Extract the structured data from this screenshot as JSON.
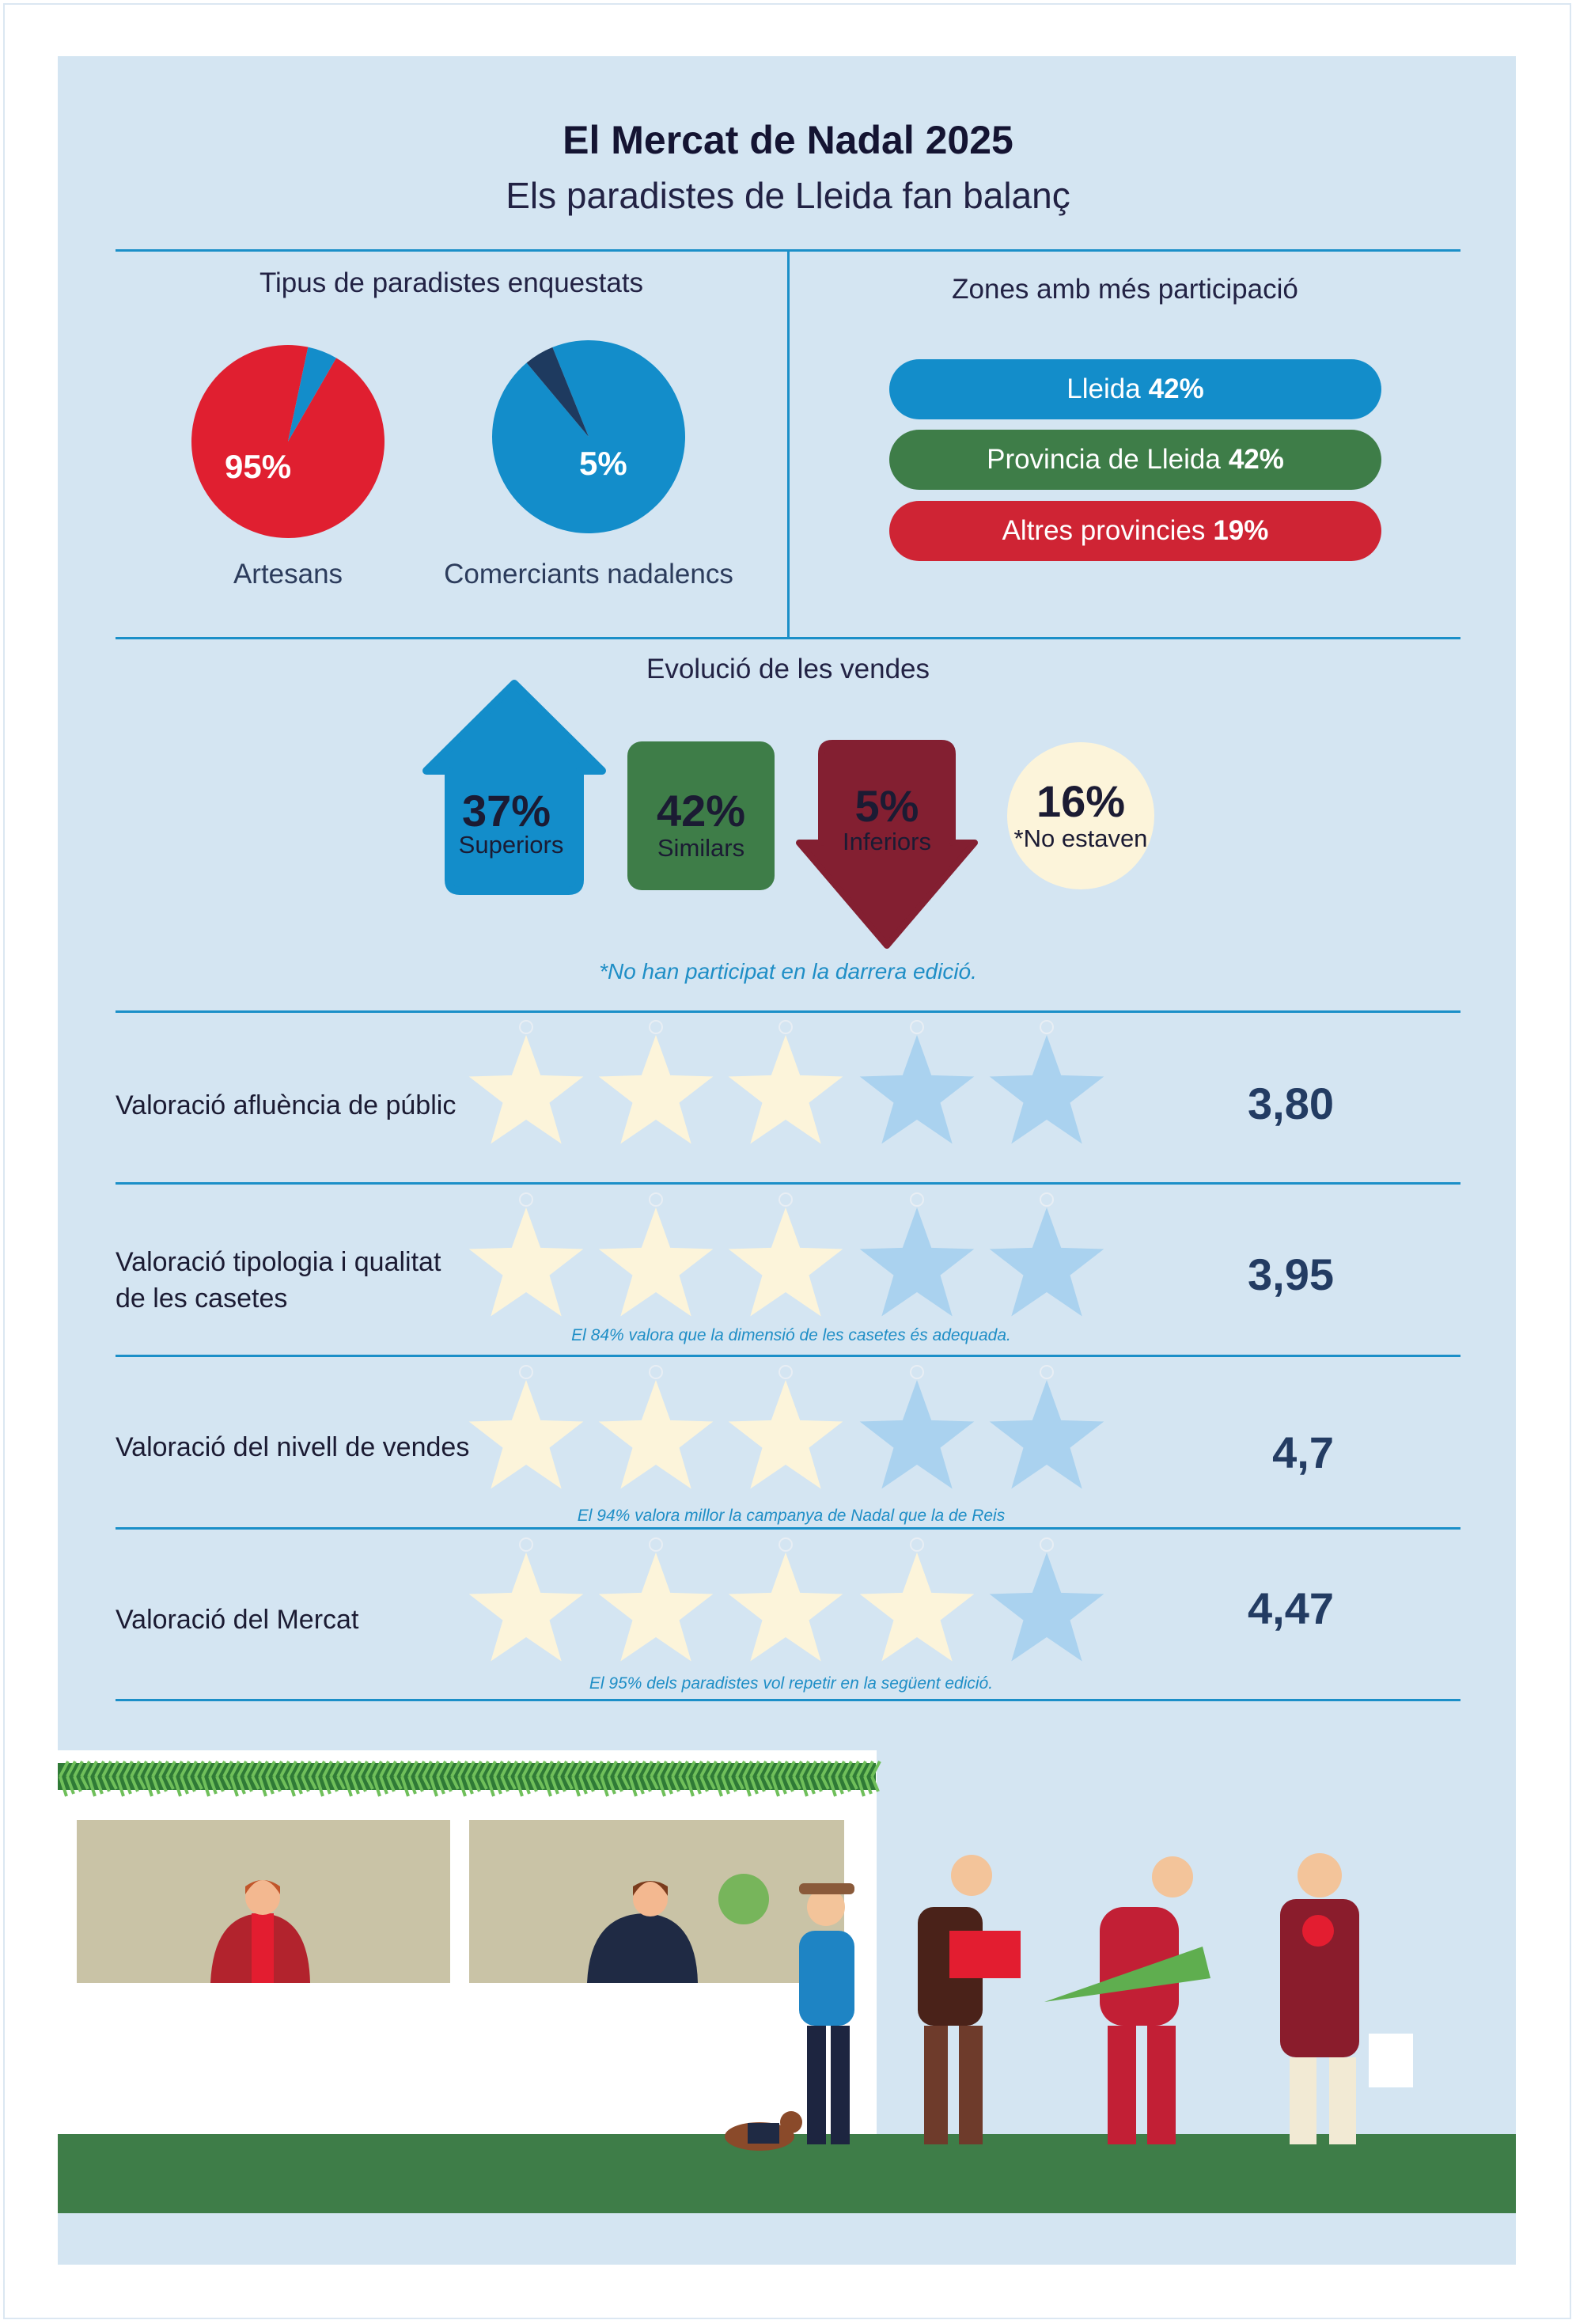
{
  "title": "El Mercat de Nadal 2025",
  "subtitle": "Els paradistes de Lleida fan balanç",
  "colors": {
    "panel": "#d4e5f2",
    "blue": "#138dca",
    "green": "#3e7d48",
    "red": "#e01f30",
    "darkred": "#831f31",
    "star_on": "#fcf4da",
    "star_off": "#aad2ef",
    "line": "#1b8fc8"
  },
  "chart_data": [
    {
      "type": "pie",
      "title": "Tipus de paradistes enquestats",
      "pies": [
        {
          "caption": "Artesans",
          "label": "95%",
          "value": 95,
          "color": "#e01f30",
          "rest_color": "#138dca"
        },
        {
          "caption": "Comerciants nadalencs",
          "label": "5%",
          "value": 5,
          "color": "#1e3a5f",
          "rest_color": "#138dca"
        }
      ]
    },
    {
      "type": "table",
      "title": "Zones amb més participació",
      "rows": [
        {
          "zone": "Lleida",
          "pct": "42%",
          "color": "#138dca"
        },
        {
          "zone": "Provincia de Lleida",
          "pct": "42%",
          "color": "#3e7d48"
        },
        {
          "zone": "Altres provincies",
          "pct": "19%",
          "color": "#cf2434"
        }
      ]
    },
    {
      "type": "table",
      "title": "Evolució de les vendes",
      "items": [
        {
          "pct": "37%",
          "label": "Superiors",
          "color": "#138dca",
          "shape": "arrow-up"
        },
        {
          "pct": "42%",
          "label": "Similars",
          "color": "#3e7d48",
          "shape": "box"
        },
        {
          "pct": "5%",
          "label": "Inferiors",
          "color": "#831f31",
          "shape": "arrow-down"
        },
        {
          "pct": "16%",
          "label": "*No estaven",
          "color": "#fcf4da",
          "shape": "circle"
        }
      ],
      "note": "*No han participat en la darrera edició."
    },
    {
      "type": "table",
      "title": "",
      "max_stars": 5,
      "ratings": [
        {
          "label": "Valoració afluència de públic",
          "value_text": "3,80",
          "value": 3.8,
          "stars_filled": 3,
          "note": ""
        },
        {
          "label_lines": [
            "Valoració tipologia i qualitat",
            "de les casetes"
          ],
          "value_text": "3,95",
          "value": 3.95,
          "stars_filled": 3,
          "note": "El 84% valora que la dimensió de les casetes és adequada."
        },
        {
          "label": "Valoració del nivell de vendes",
          "value_text": "4,7",
          "value": 4.7,
          "stars_filled": 3,
          "note": "El 94% valora millor la campanya de Nadal que la de Reis"
        },
        {
          "label": "Valoració del Mercat",
          "value_text": "4,47",
          "value": 4.47,
          "stars_filled": 4,
          "note": "El 95% dels paradistes vol repetir en la següent edició."
        }
      ]
    }
  ]
}
